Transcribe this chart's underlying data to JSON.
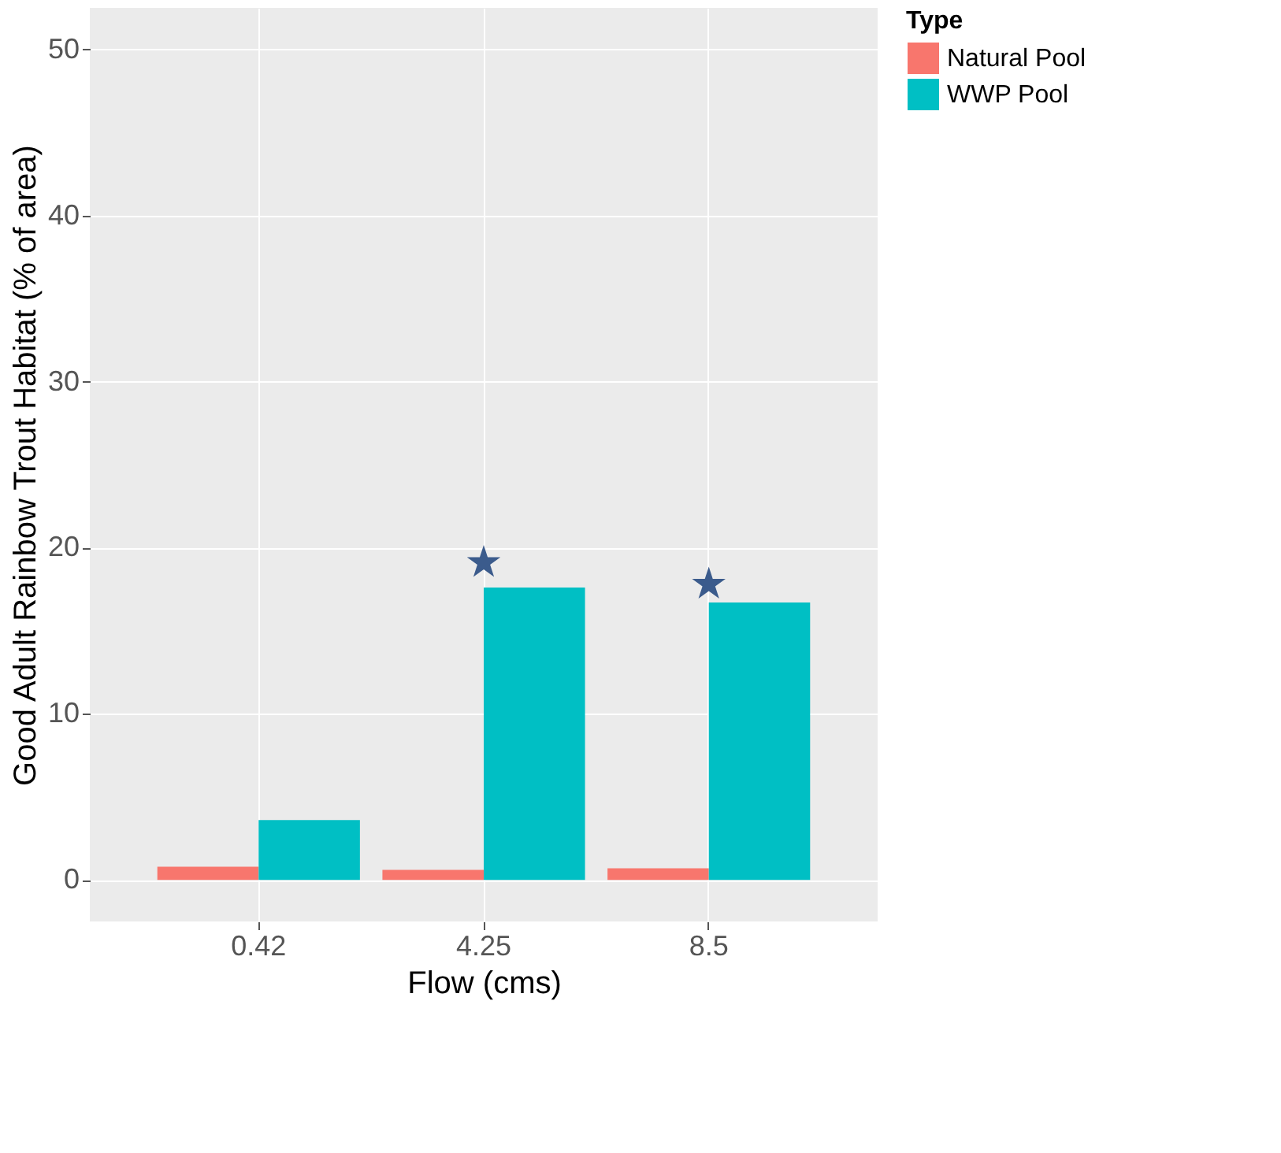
{
  "chart_data": {
    "type": "bar",
    "xlabel": "Flow (cms)",
    "ylabel": "Good Adult Rainbow Trout Habitat (% of area)",
    "legend_title": "Type",
    "categories": [
      "0.42",
      "4.25",
      "8.5"
    ],
    "series": [
      {
        "name": "Natural Pool",
        "color": "#f8766d",
        "values": [
          0.8,
          0.6,
          0.7
        ]
      },
      {
        "name": "WWP Pool",
        "color": "#00bfc4",
        "values": [
          3.6,
          17.6,
          16.7
        ]
      },
      {
        "type": "scatter",
        "marker": "star",
        "color": "#3b5b8c",
        "x": [
          "4.25",
          "8.5"
        ],
        "values": [
          19.1,
          17.8
        ]
      }
    ],
    "ylim": [
      -2.5,
      52.5
    ],
    "yticks": [
      0,
      10,
      20,
      30,
      40,
      50
    ],
    "grid": true,
    "legend": "right"
  }
}
